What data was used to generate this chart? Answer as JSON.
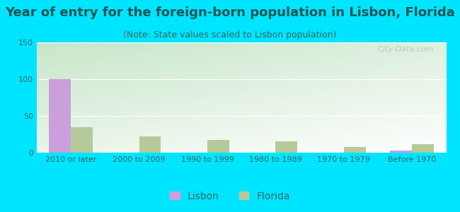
{
  "title": "Year of entry for the foreign-born population in Lisbon, Florida",
  "subtitle": "(Note: State values scaled to Lisbon population)",
  "categories": [
    "2010 or later",
    "2000 to 2009",
    "1990 to 1999",
    "1980 to 1989",
    "1970 to 1979",
    "Before 1970"
  ],
  "lisbon_values": [
    100,
    0,
    0,
    0,
    0,
    3
  ],
  "florida_values": [
    35,
    22,
    17,
    15,
    8,
    12
  ],
  "lisbon_color": "#c9a0dc",
  "florida_color": "#b5c99a",
  "background_outer": "#00e5ff",
  "ylim": [
    0,
    150
  ],
  "yticks": [
    0,
    50,
    100,
    150
  ],
  "title_fontsize": 13,
  "subtitle_fontsize": 9,
  "tick_fontsize": 8,
  "legend_fontsize": 10,
  "watermark_text": "City-Data.com",
  "watermark_color": "#b0c4c4"
}
